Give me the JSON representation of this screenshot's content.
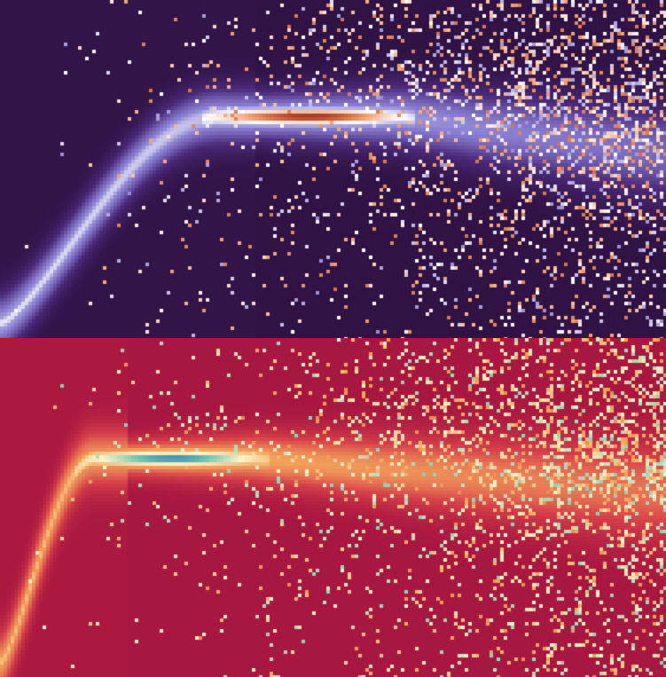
{
  "chart_data": [
    {
      "type": "heatmap",
      "colormap": "dark-purple-to-lavender-white-to-orange-red-brown",
      "colors": [
        "#2c0f3d",
        "#4b2a7a",
        "#8a7fd2",
        "#ffffff",
        "#f2a070",
        "#b5452a",
        "#4a1a1a"
      ],
      "background_color": "#2d1140",
      "ridge": {
        "x_start": 0.0,
        "x_peak_start": 0.33,
        "x_peak_end": 0.6,
        "y_peak": 0.34,
        "x_end": 1.0,
        "y_end": 0.45
      },
      "title": "",
      "xlabel": "",
      "ylabel": ""
    },
    {
      "type": "heatmap",
      "colormap": "crimson-to-orange-to-cream-to-teal-blue",
      "colors": [
        "#a3123f",
        "#d6404a",
        "#f4a55c",
        "#fff4c8",
        "#6cc0b0",
        "#2a5fa8"
      ],
      "background_color": "#a5123f",
      "ridge": {
        "x_start": 0.0,
        "x_peak_start": 0.14,
        "x_peak_end": 0.38,
        "y_peak": 0.35,
        "x_end": 1.0,
        "y_end": 0.45
      },
      "title": "",
      "xlabel": "",
      "ylabel": ""
    }
  ]
}
